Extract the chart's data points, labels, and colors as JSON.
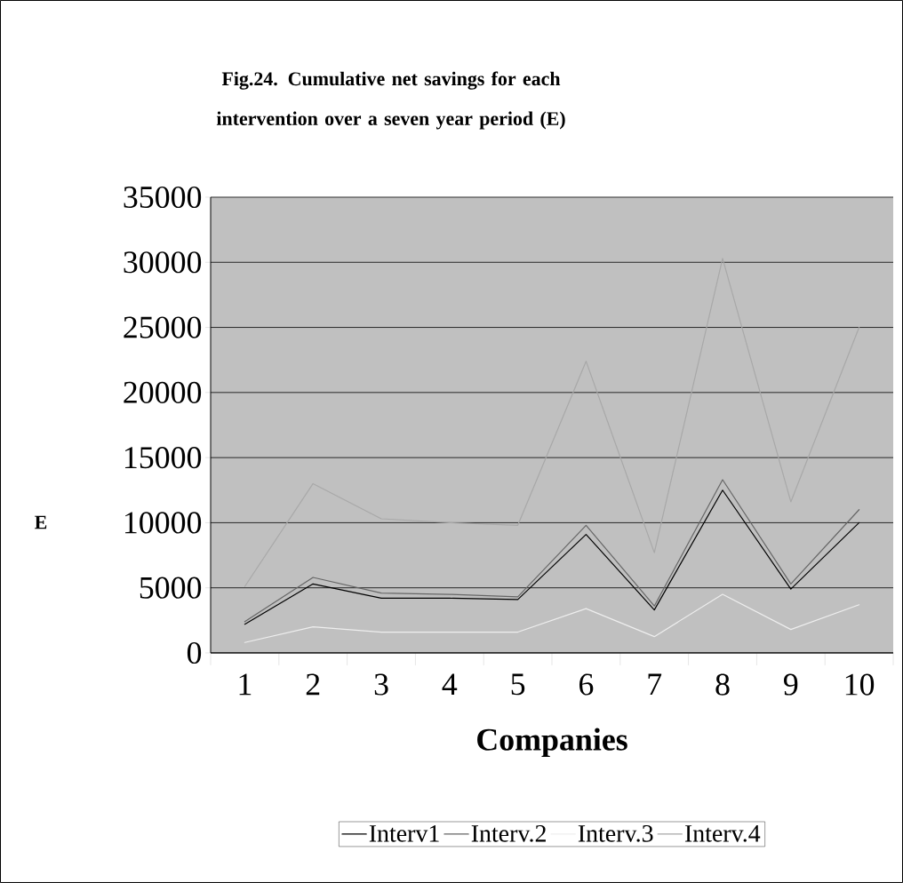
{
  "chart_data": {
    "type": "line",
    "title": "Fig.24. Cumulative net savings for each intervention over a seven year period (E)",
    "xlabel": "Companies",
    "ylabel": "E",
    "categories": [
      "1",
      "2",
      "3",
      "4",
      "5",
      "6",
      "7",
      "8",
      "9",
      "10"
    ],
    "series": [
      {
        "name": "Interv1",
        "color": "#000000",
        "values": [
          2200,
          5300,
          4200,
          4200,
          4100,
          9100,
          3300,
          12500,
          4900,
          10000
        ]
      },
      {
        "name": "Interv.2",
        "color": "#666666",
        "values": [
          2400,
          5800,
          4600,
          4500,
          4300,
          9800,
          3600,
          13300,
          5300,
          11000
        ]
      },
      {
        "name": "Interv.3",
        "color": "#eeeeee",
        "values": [
          800,
          2000,
          1600,
          1600,
          1600,
          3400,
          1250,
          4500,
          1800,
          3700
        ]
      },
      {
        "name": "Interv.4",
        "color": "#a8a8a8",
        "values": [
          5100,
          13000,
          10300,
          10000,
          9800,
          22400,
          7700,
          30300,
          11600,
          25000
        ]
      }
    ],
    "ylim": [
      0,
      35000
    ],
    "yticks": [
      0,
      5000,
      10000,
      15000,
      20000,
      25000,
      30000,
      35000
    ],
    "grid": "y",
    "legend": "bottom",
    "marker": "none",
    "line_style": "solid"
  }
}
